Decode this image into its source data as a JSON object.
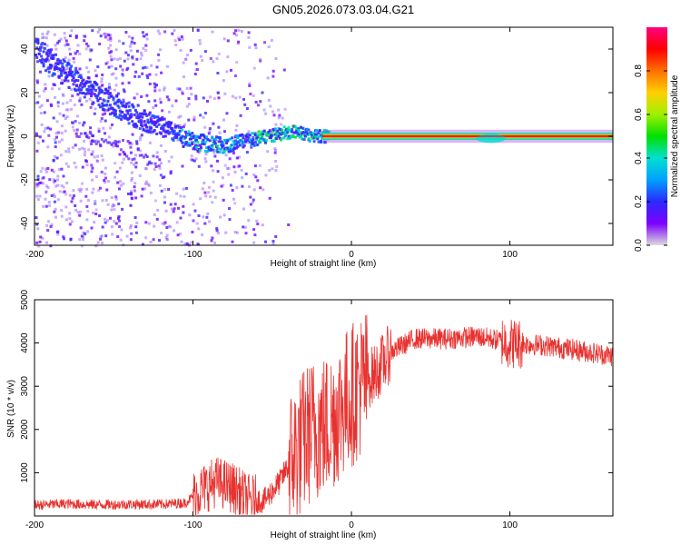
{
  "title": "GN05.2026.073.03.04.G21",
  "colors": {
    "axis": "#000000",
    "snr_line": "#e8322f",
    "colorbar_stops": [
      "#dcdcdc",
      "#7d00ff",
      "#2a2aff",
      "#00a0ff",
      "#00e0d0",
      "#00e000",
      "#a0f000",
      "#ffd000",
      "#ff7000",
      "#ff0000",
      "#ff0080"
    ]
  },
  "chart_data": [
    {
      "type": "heatmap",
      "title": "GN05.2026.073.03.04.G21",
      "xlabel": "Height of straight line (km)",
      "ylabel": "Frequency (Hz)",
      "xlim": [
        -200,
        165
      ],
      "ylim": [
        -50,
        50
      ],
      "x_ticks": [
        -200,
        -100,
        0,
        100
      ],
      "y_ticks": [
        -40,
        -20,
        0,
        20,
        40
      ],
      "colorbar": {
        "label": "Normalized spectral amplitude",
        "range": [
          0.0,
          1.0
        ],
        "ticks": [
          0.0,
          0.2,
          0.4,
          0.6,
          0.8
        ]
      },
      "ridge": {
        "description_points_x": [
          -200,
          -180,
          -160,
          -140,
          -120,
          -100,
          -80,
          -60,
          -40,
          -20,
          0,
          20,
          60,
          100,
          165
        ],
        "description_points_y": [
          40,
          28,
          18,
          10,
          4,
          -3,
          -4,
          -1,
          2,
          0,
          0,
          0,
          0,
          0,
          0
        ]
      }
    },
    {
      "type": "line",
      "xlabel": "Height of straight line (km)",
      "ylabel": "SNR (10 * v/v)",
      "xlim": [
        -200,
        165
      ],
      "ylim": [
        0,
        5000
      ],
      "x_ticks": [
        -200,
        -100,
        0,
        100
      ],
      "y_ticks": [
        1000,
        2000,
        3000,
        4000,
        5000
      ],
      "series": [
        {
          "name": "SNR",
          "x": [
            -200,
            -180,
            -160,
            -140,
            -120,
            -105,
            -95,
            -85,
            -75,
            -65,
            -55,
            -45,
            -35,
            -25,
            -15,
            -5,
            5,
            15,
            25,
            40,
            60,
            80,
            95,
            100,
            120,
            140,
            165
          ],
          "values": [
            250,
            280,
            260,
            270,
            270,
            300,
            600,
            800,
            650,
            380,
            350,
            800,
            1500,
            2000,
            2100,
            2600,
            3000,
            3300,
            3800,
            4100,
            4100,
            4150,
            4050,
            4000,
            3950,
            3850,
            3700
          ]
        }
      ]
    }
  ]
}
